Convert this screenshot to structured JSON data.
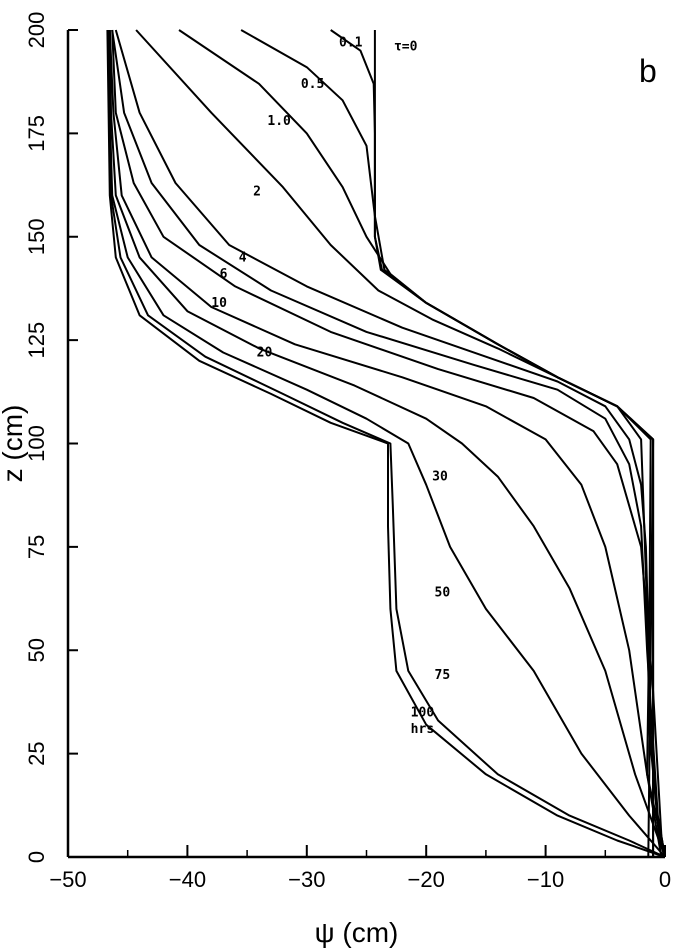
{
  "chart_data": {
    "type": "line",
    "panel_label": "b",
    "xlabel": "ψ (cm)",
    "ylabel": "z (cm)",
    "xlim": [
      -50,
      0
    ],
    "ylim": [
      0,
      200
    ],
    "x_ticks": [
      -50,
      -40,
      -30,
      -20,
      -10,
      0
    ],
    "y_ticks": [
      0,
      25,
      50,
      75,
      100,
      125,
      150,
      175,
      200
    ],
    "x_tick_labels": [
      "−50",
      "−40",
      "−30",
      "−20",
      "−10",
      "0"
    ],
    "y_tick_labels": [
      "0",
      "25",
      "50",
      "75",
      "100",
      "125",
      "150",
      "175",
      "200"
    ],
    "grid": false,
    "series": [
      {
        "name": "t=0",
        "label": "τ=0",
        "label_pos": [
          -22.7,
          195
        ],
        "points": [
          [
            -24.3,
            200
          ],
          [
            -24.3,
            150
          ],
          [
            -23.8,
            142
          ],
          [
            -20,
            134
          ],
          [
            -14,
            124
          ],
          [
            -9,
            116
          ],
          [
            -4,
            109
          ],
          [
            -1,
            101
          ],
          [
            -1,
            0
          ]
        ]
      },
      {
        "name": "0.1",
        "label": "0.1",
        "label_pos": [
          -27.3,
          196
        ],
        "points": [
          [
            -28,
            200
          ],
          [
            -25.5,
            195
          ],
          [
            -24.4,
            187
          ],
          [
            -24.3,
            175
          ],
          [
            -24.3,
            150
          ],
          [
            -23.7,
            142
          ],
          [
            -20,
            134
          ],
          [
            -14,
            124
          ],
          [
            -9,
            116
          ],
          [
            -4,
            109
          ],
          [
            -1,
            101
          ],
          [
            -1,
            0
          ]
        ]
      },
      {
        "name": "0.5",
        "label": "0.5",
        "label_pos": [
          -30.5,
          186
        ],
        "points": [
          [
            -35.5,
            200
          ],
          [
            -30,
            191
          ],
          [
            -27,
            183
          ],
          [
            -25,
            172
          ],
          [
            -24.3,
            155
          ],
          [
            -23.5,
            142
          ],
          [
            -20,
            134
          ],
          [
            -14,
            124
          ],
          [
            -9,
            116
          ],
          [
            -4,
            109
          ],
          [
            -1,
            101
          ],
          [
            -1.2,
            50
          ],
          [
            -1.4,
            0
          ]
        ]
      },
      {
        "name": "1.0",
        "label": "1.0",
        "label_pos": [
          -33.3,
          177
        ],
        "points": [
          [
            -40.7,
            200
          ],
          [
            -34,
            187
          ],
          [
            -30,
            175
          ],
          [
            -27,
            162
          ],
          [
            -25,
            150
          ],
          [
            -23,
            141
          ],
          [
            -20,
            134
          ],
          [
            -14,
            124
          ],
          [
            -9,
            116
          ],
          [
            -4,
            109
          ],
          [
            -1.2,
            101
          ],
          [
            -1.3,
            60
          ],
          [
            -1.5,
            20
          ],
          [
            -0.3,
            0
          ]
        ]
      },
      {
        "name": "2",
        "label": "2",
        "label_pos": [
          -34.5,
          160
        ],
        "points": [
          [
            -44.3,
            200
          ],
          [
            -38,
            180
          ],
          [
            -32,
            162
          ],
          [
            -28,
            148
          ],
          [
            -24,
            137
          ],
          [
            -19.5,
            130
          ],
          [
            -14,
            123
          ],
          [
            -9,
            116
          ],
          [
            -4,
            109
          ],
          [
            -2,
            101
          ],
          [
            -1.8,
            85
          ],
          [
            -1.5,
            60
          ],
          [
            -1.3,
            30
          ],
          [
            -0.5,
            5
          ],
          [
            0,
            0
          ]
        ]
      },
      {
        "name": "4",
        "label": "4",
        "label_pos": [
          -35.7,
          144
        ],
        "points": [
          [
            -46,
            200
          ],
          [
            -44,
            180
          ],
          [
            -41,
            163
          ],
          [
            -36.5,
            148
          ],
          [
            -30,
            138
          ],
          [
            -22,
            128
          ],
          [
            -15,
            121
          ],
          [
            -9,
            115
          ],
          [
            -5,
            109
          ],
          [
            -3,
            101
          ],
          [
            -2,
            90
          ],
          [
            -1.6,
            75
          ],
          [
            -1.4,
            55
          ],
          [
            -1.2,
            30
          ],
          [
            -0.5,
            5
          ],
          [
            0,
            0
          ]
        ]
      },
      {
        "name": "6",
        "label": "6",
        "label_pos": [
          -37.3,
          140
        ],
        "points": [
          [
            -46.3,
            200
          ],
          [
            -45.3,
            180
          ],
          [
            -43,
            163
          ],
          [
            -39,
            148
          ],
          [
            -33,
            137
          ],
          [
            -25,
            127
          ],
          [
            -16,
            119
          ],
          [
            -9,
            113
          ],
          [
            -5,
            106
          ],
          [
            -3,
            95
          ],
          [
            -2,
            80
          ],
          [
            -1.5,
            50
          ],
          [
            -0.6,
            10
          ],
          [
            0,
            0
          ]
        ]
      },
      {
        "name": "10",
        "label": "10",
        "label_pos": [
          -38,
          133
        ],
        "points": [
          [
            -46.3,
            200
          ],
          [
            -46,
            180
          ],
          [
            -44.5,
            163
          ],
          [
            -42,
            150
          ],
          [
            -36,
            138
          ],
          [
            -28,
            127
          ],
          [
            -19,
            118
          ],
          [
            -11,
            111
          ],
          [
            -6,
            103
          ],
          [
            -4,
            95
          ],
          [
            -2,
            75
          ],
          [
            -1,
            40
          ],
          [
            -0.3,
            5
          ],
          [
            0,
            0
          ]
        ]
      },
      {
        "name": "20",
        "label": "20",
        "label_pos": [
          -34.2,
          121
        ],
        "points": [
          [
            -46.5,
            200
          ],
          [
            -46.2,
            180
          ],
          [
            -45.5,
            160
          ],
          [
            -43,
            145
          ],
          [
            -38,
            133
          ],
          [
            -31,
            124
          ],
          [
            -22,
            116
          ],
          [
            -15,
            109
          ],
          [
            -10,
            101
          ],
          [
            -7,
            90
          ],
          [
            -5,
            75
          ],
          [
            -3,
            50
          ],
          [
            -1.5,
            20
          ],
          [
            0,
            0
          ]
        ]
      },
      {
        "name": "30",
        "label": "30",
        "label_pos": [
          -19.5,
          91
        ],
        "points": [
          [
            -46.5,
            200
          ],
          [
            -46.4,
            180
          ],
          [
            -46,
            160
          ],
          [
            -44,
            145
          ],
          [
            -40,
            132
          ],
          [
            -34,
            123
          ],
          [
            -26,
            114
          ],
          [
            -20,
            106
          ],
          [
            -17,
            100
          ],
          [
            -14,
            92
          ],
          [
            -11,
            80
          ],
          [
            -8,
            65
          ],
          [
            -5,
            45
          ],
          [
            -2.5,
            20
          ],
          [
            0,
            0
          ]
        ]
      },
      {
        "name": "50",
        "label": "50",
        "label_pos": [
          -19.3,
          63
        ],
        "points": [
          [
            -46.6,
            200
          ],
          [
            -46.5,
            180
          ],
          [
            -46.3,
            160
          ],
          [
            -45,
            145
          ],
          [
            -42,
            131
          ],
          [
            -37,
            122
          ],
          [
            -30,
            113
          ],
          [
            -25,
            106
          ],
          [
            -21.5,
            100
          ],
          [
            -20,
            90
          ],
          [
            -18,
            75
          ],
          [
            -15,
            60
          ],
          [
            -11,
            45
          ],
          [
            -7,
            25
          ],
          [
            -3,
            10
          ],
          [
            0,
            0
          ]
        ]
      },
      {
        "name": "75",
        "label": "75",
        "label_pos": [
          -19.3,
          43
        ],
        "points": [
          [
            -46.6,
            200
          ],
          [
            -46.5,
            180
          ],
          [
            -46.4,
            160
          ],
          [
            -45.6,
            145
          ],
          [
            -43.3,
            131
          ],
          [
            -38.5,
            121
          ],
          [
            -32,
            112
          ],
          [
            -27,
            105
          ],
          [
            -23,
            100
          ],
          [
            -22.8,
            85
          ],
          [
            -22.5,
            60
          ],
          [
            -21.5,
            45
          ],
          [
            -19,
            33
          ],
          [
            -14,
            20
          ],
          [
            -8,
            10
          ],
          [
            -3,
            4
          ],
          [
            0,
            0
          ]
        ]
      },
      {
        "name": "100",
        "label": "100",
        "label_pos": [
          -21.3,
          34
        ],
        "points": [
          [
            -46.7,
            200
          ],
          [
            -46.6,
            180
          ],
          [
            -46.5,
            160
          ],
          [
            -46,
            145
          ],
          [
            -44,
            131
          ],
          [
            -39,
            120
          ],
          [
            -33,
            112
          ],
          [
            -28,
            105
          ],
          [
            -23.2,
            100
          ],
          [
            -23.2,
            80
          ],
          [
            -23,
            60
          ],
          [
            -22.5,
            45
          ],
          [
            -20,
            32
          ],
          [
            -15,
            20
          ],
          [
            -9,
            10
          ],
          [
            -4,
            4
          ],
          [
            0,
            0
          ]
        ]
      }
    ],
    "annotations": [
      {
        "text": "hrs",
        "pos": [
          -21.3,
          30
        ]
      }
    ]
  }
}
